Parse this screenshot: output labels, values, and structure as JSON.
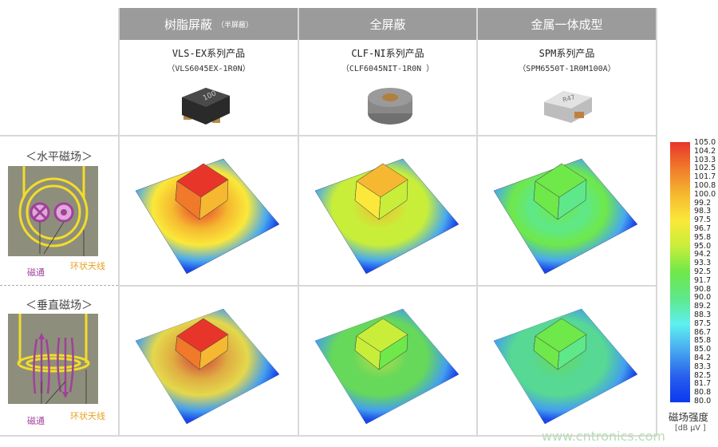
{
  "columns": [
    {
      "title": "树脂屏蔽",
      "subtitle": "（半屏蔽）",
      "product": "VLS-EX系列产品",
      "model": "（VLS6045EX-1R0N）",
      "chip_mark": "100"
    },
    {
      "title": "全屏蔽",
      "subtitle": "",
      "product": "CLF-NI系列产品",
      "model": "（CLF6045NIT-1R0N ）",
      "chip_mark": ""
    },
    {
      "title": "金属一体成型",
      "subtitle": "",
      "product": "SPM系列产品",
      "model": "（SPM6550T-1R0M100A）",
      "chip_mark": "R47"
    }
  ],
  "rows": [
    {
      "label": "＜水平磁场＞",
      "flux": "磁通",
      "antenna": "环状天线"
    },
    {
      "label": "＜垂直磁场＞",
      "flux": "磁通",
      "antenna": "环状天线"
    }
  ],
  "peaks_dbuv": {
    "horizontal": [
      104.2,
      99.2,
      93.3
    ],
    "vertical": [
      104.2,
      95.0,
      92.5
    ]
  },
  "colorbar": {
    "title": "磁场强度",
    "unit": "[dB μV ]",
    "ticks": [
      "105.0",
      "104.2",
      "103.3",
      "102.5",
      "101.7",
      "100.8",
      "100.0",
      "99.2",
      "98.3",
      "97.5",
      "96.7",
      "95.8",
      "95.0",
      "94.2",
      "93.3",
      "92.5",
      "91.7",
      "90.8",
      "90.0",
      "89.2",
      "88.3",
      "87.5",
      "86.7",
      "85.8",
      "85.0",
      "84.2",
      "83.3",
      "82.5",
      "81.7",
      "80.8",
      "80.0"
    ],
    "colors": [
      "#e8352a",
      "#f07a2a",
      "#f5b830",
      "#fbe83a",
      "#c8ee3a",
      "#6fe84a",
      "#5ee88a",
      "#5ef0f0",
      "#48a8f0",
      "#2860ec",
      "#0a38f0"
    ]
  },
  "watermark": "www.cntronics.com"
}
